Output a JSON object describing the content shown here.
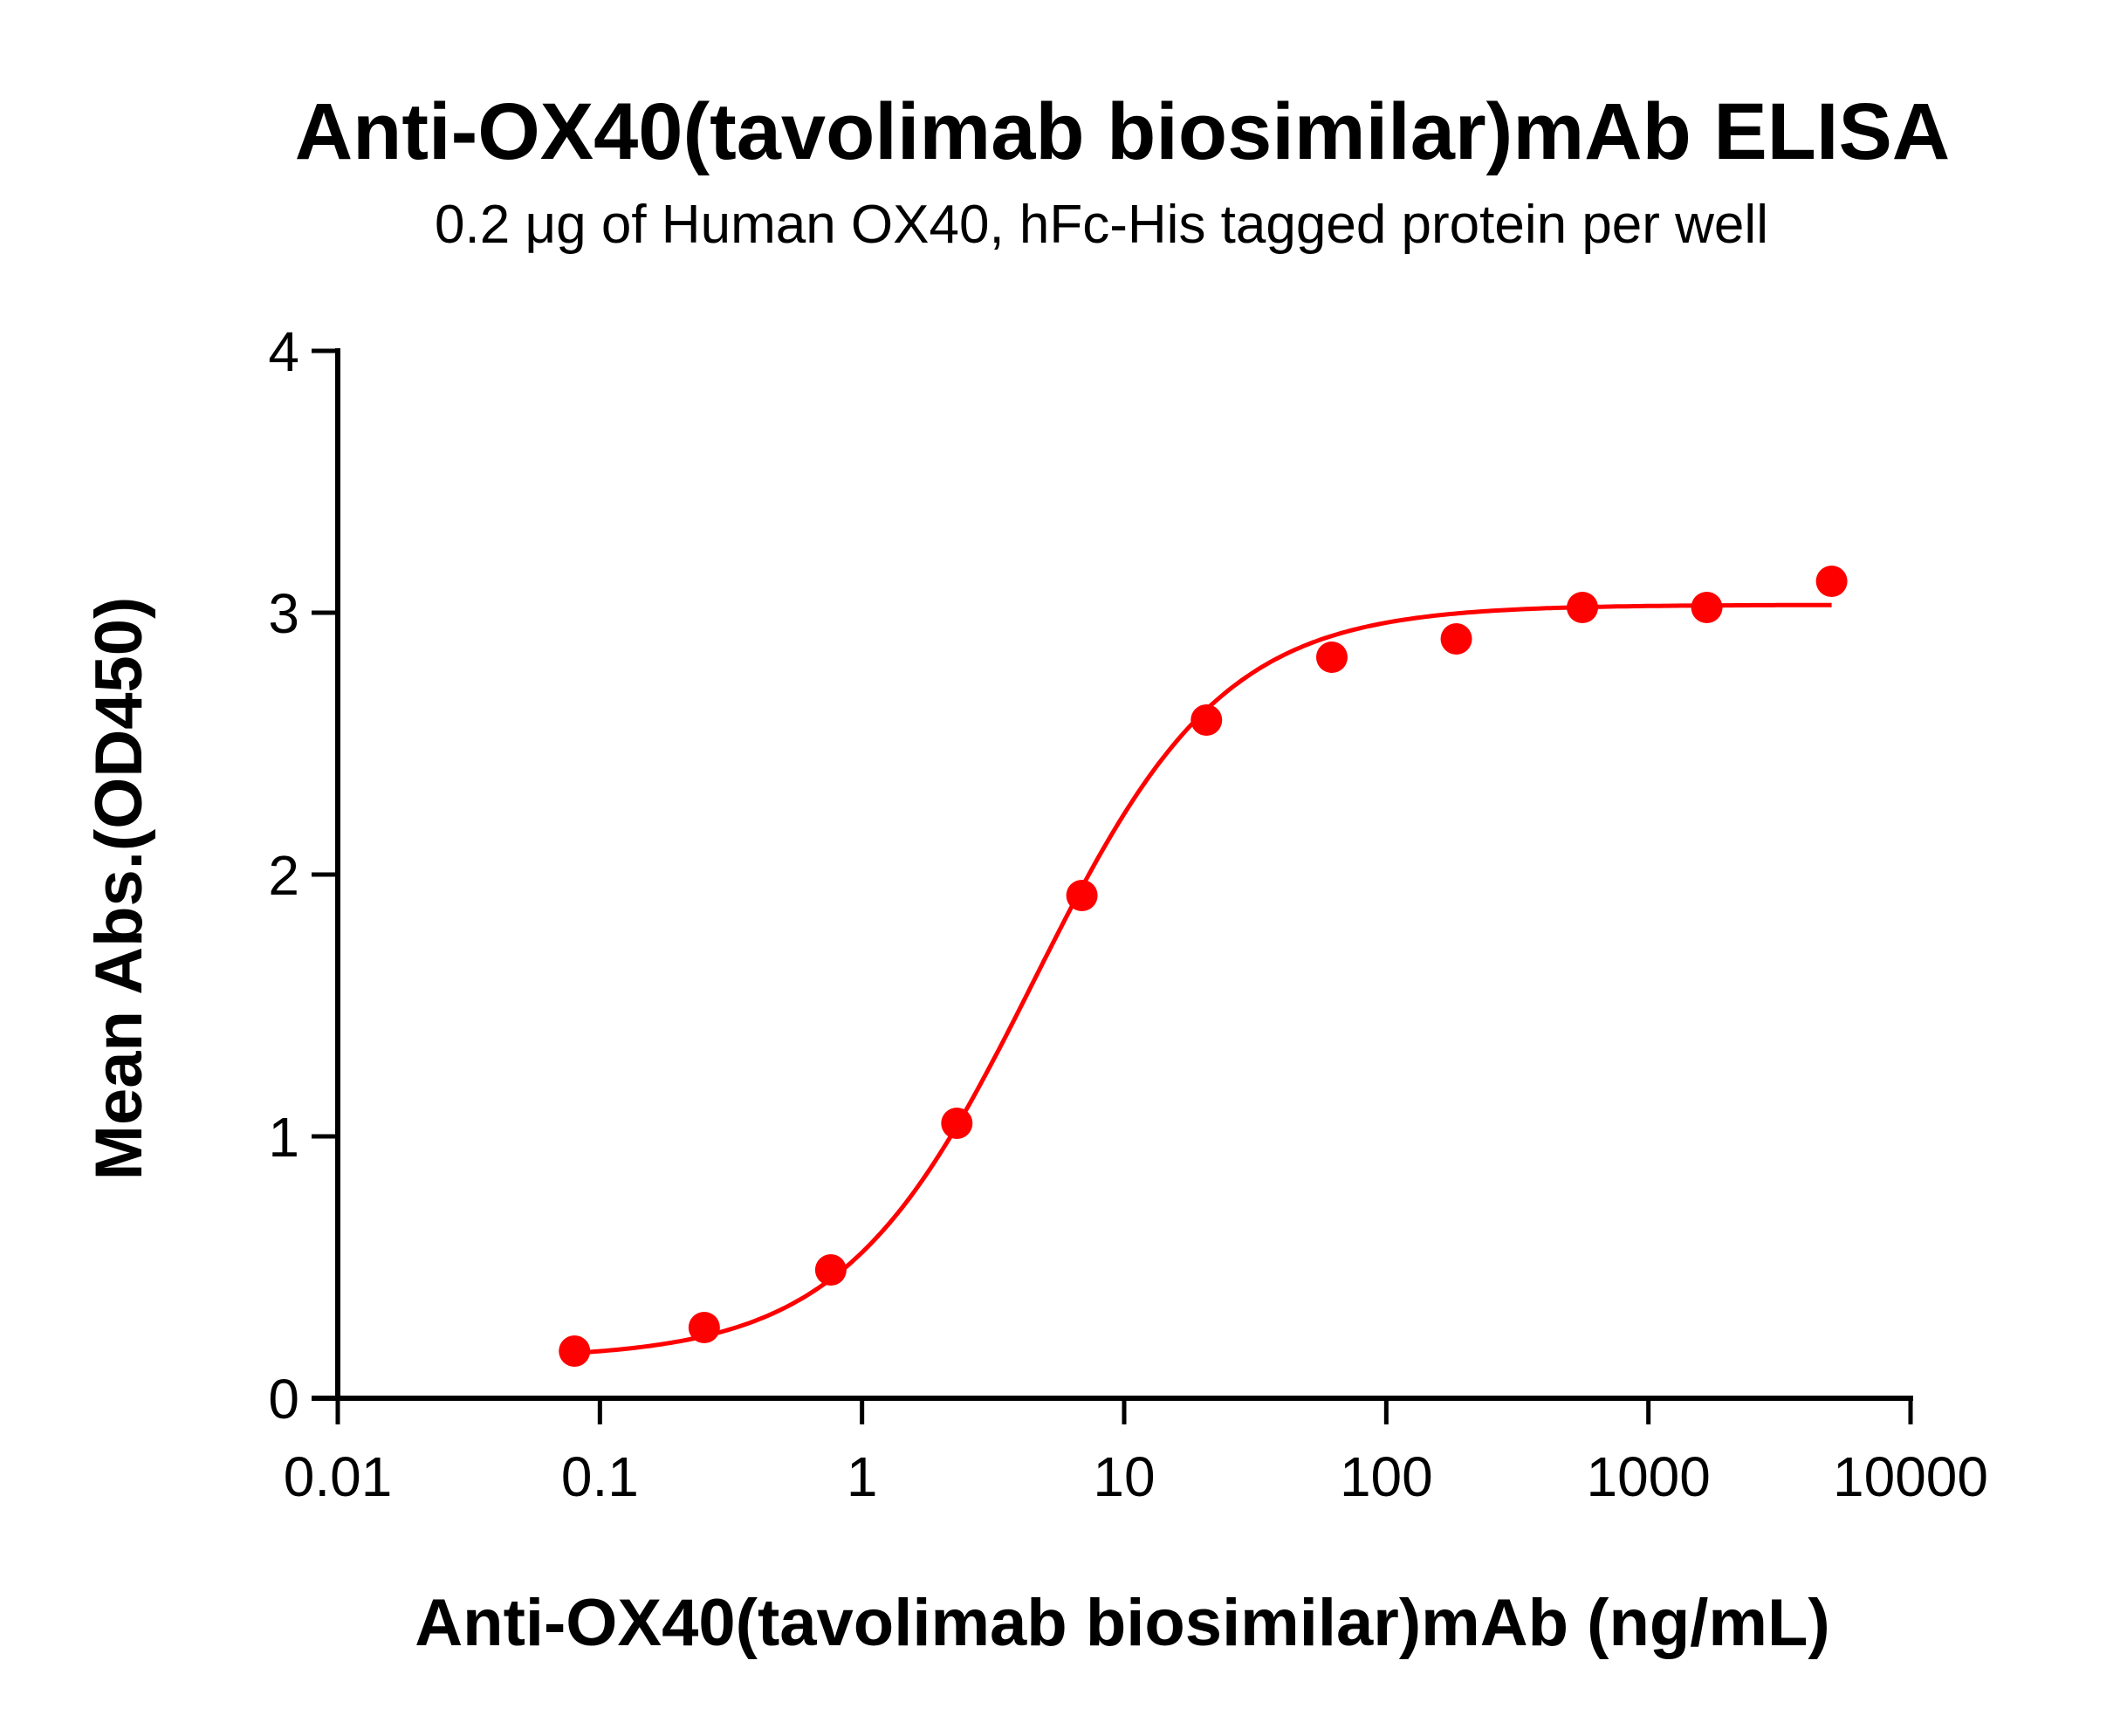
{
  "chart_data": {
    "type": "scatter",
    "title": "Anti-OX40(tavolimab biosimilar)mAb ELISA",
    "subtitle": "0.2 μg of Human OX40, hFc-His tagged protein per well",
    "xlabel": "Anti-OX40(tavolimab biosimilar)mAb (ng/mL)",
    "ylabel": "Mean Abs.(OD450)",
    "x_scale": "log",
    "xlim": [
      0.01,
      10000
    ],
    "ylim": [
      0,
      4
    ],
    "x_ticks": [
      0.01,
      0.1,
      1,
      10,
      100,
      1000,
      10000
    ],
    "x_tick_labels": [
      "0.01",
      "0.1",
      "1",
      "10",
      "100",
      "1000",
      "10000"
    ],
    "y_ticks": [
      0,
      1,
      2,
      3,
      4
    ],
    "y_tick_labels": [
      "0",
      "1",
      "2",
      "3",
      "4"
    ],
    "grid": false,
    "legend": null,
    "series": [
      {
        "name": "Anti-OX40(tavolimab biosimilar)mAb",
        "color": "#ff0000",
        "marker": "circle",
        "x": [
          0.08,
          0.25,
          0.76,
          2.3,
          6.9,
          20.6,
          62,
          185,
          560,
          1670,
          5000
        ],
        "y": [
          0.18,
          0.27,
          0.49,
          1.05,
          1.92,
          2.59,
          2.83,
          2.9,
          3.02,
          3.02,
          3.12
        ]
      }
    ],
    "fit": {
      "type": "4PL",
      "color": "#ff0000",
      "bottom": 0.15,
      "top": 3.03,
      "ec50": 4.5,
      "hill": 1.2,
      "x_range": [
        0.08,
        5000
      ]
    }
  }
}
